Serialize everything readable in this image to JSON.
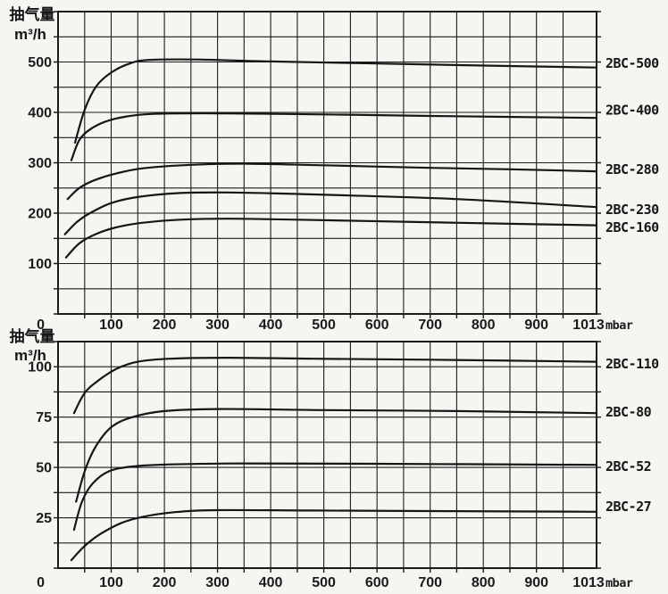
{
  "page": {
    "background": "#f6f5f2",
    "ink": "#1b1b1b"
  },
  "chart_data": [
    {
      "type": "line",
      "position": "top",
      "ylabel_cn": "抽气量",
      "ylabel_unit": "m³/h",
      "x_unit": "mbar",
      "xlim": [
        0,
        1013
      ],
      "ylim": [
        0,
        600
      ],
      "x_grid_step": 50,
      "y_grid_step": 50,
      "x_tick_labels": [
        100,
        200,
        300,
        400,
        500,
        600,
        700,
        800,
        900
      ],
      "x_end_tick_label": "1013",
      "y_tick_labels": [
        100,
        200,
        300,
        400,
        500
      ],
      "origin_label": "0",
      "grid": true,
      "legend_position": "right-outside",
      "series": [
        {
          "name": "2BC-500",
          "label_y": 497,
          "points": [
            [
              32,
              340
            ],
            [
              50,
              405
            ],
            [
              72,
              452
            ],
            [
              100,
              479
            ],
            [
              135,
              497
            ],
            [
              170,
              504
            ],
            [
              260,
              505
            ],
            [
              400,
              501
            ],
            [
              600,
              497
            ],
            [
              800,
              493
            ],
            [
              1013,
              489
            ]
          ]
        },
        {
          "name": "2BC-400",
          "label_y": 404,
          "points": [
            [
              25,
              305
            ],
            [
              40,
              345
            ],
            [
              60,
              366
            ],
            [
              90,
              382
            ],
            [
              130,
              392
            ],
            [
              180,
              397
            ],
            [
              300,
              398
            ],
            [
              500,
              396
            ],
            [
              700,
              393
            ],
            [
              1013,
              389
            ]
          ]
        },
        {
          "name": "2BC-280",
          "label_y": 287,
          "points": [
            [
              18,
              228
            ],
            [
              40,
              250
            ],
            [
              70,
              266
            ],
            [
              110,
              279
            ],
            [
              160,
              289
            ],
            [
              250,
              296
            ],
            [
              360,
              298
            ],
            [
              500,
              295
            ],
            [
              700,
              290
            ],
            [
              850,
              287
            ],
            [
              1013,
              283
            ]
          ]
        },
        {
          "name": "2BC-230",
          "label_y": 207,
          "points": [
            [
              13,
              158
            ],
            [
              35,
              182
            ],
            [
              60,
              200
            ],
            [
              100,
              220
            ],
            [
              150,
              232
            ],
            [
              230,
              240
            ],
            [
              320,
              241
            ],
            [
              420,
              239
            ],
            [
              550,
              235
            ],
            [
              750,
              228
            ],
            [
              1013,
              212
            ]
          ]
        },
        {
          "name": "2BC-160",
          "label_y": 172,
          "points": [
            [
              15,
              112
            ],
            [
              40,
              140
            ],
            [
              70,
              158
            ],
            [
              110,
              172
            ],
            [
              160,
              181
            ],
            [
              230,
              187
            ],
            [
              320,
              189
            ],
            [
              450,
              187
            ],
            [
              650,
              183
            ],
            [
              850,
              179
            ],
            [
              1013,
              176
            ]
          ]
        }
      ]
    },
    {
      "type": "line",
      "position": "bottom",
      "ylabel_cn": "抽气量",
      "ylabel_unit": "m³/h",
      "x_unit": "mbar",
      "xlim": [
        0,
        1013
      ],
      "ylim": [
        0,
        112.5
      ],
      "x_grid_step": 50,
      "y_grid_step": 12.5,
      "x_tick_labels": [
        100,
        200,
        300,
        400,
        500,
        600,
        700,
        800,
        900
      ],
      "x_end_tick_label": "1013",
      "y_tick_labels": [
        25,
        50,
        75,
        100
      ],
      "origin_label": "0",
      "grid": true,
      "legend_position": "right-outside",
      "series": [
        {
          "name": "2BC-110",
          "label_y": 101.5,
          "points": [
            [
              30,
              77
            ],
            [
              50,
              87
            ],
            [
              75,
              93
            ],
            [
              110,
              99
            ],
            [
              150,
              102.5
            ],
            [
              210,
              104
            ],
            [
              320,
              104.5
            ],
            [
              480,
              104
            ],
            [
              700,
              103.5
            ],
            [
              1013,
              102.5
            ]
          ]
        },
        {
          "name": "2BC-80",
          "label_y": 77.5,
          "points": [
            [
              34,
              33
            ],
            [
              50,
              48
            ],
            [
              70,
              60
            ],
            [
              100,
              70
            ],
            [
              140,
              75
            ],
            [
              200,
              78
            ],
            [
              300,
              79
            ],
            [
              500,
              78.5
            ],
            [
              750,
              78
            ],
            [
              1013,
              77
            ]
          ]
        },
        {
          "name": "2BC-52",
          "label_y": 50.5,
          "points": [
            [
              30,
              19
            ],
            [
              45,
              33
            ],
            [
              65,
              42
            ],
            [
              95,
              48
            ],
            [
              140,
              50.5
            ],
            [
              210,
              51.5
            ],
            [
              350,
              52
            ],
            [
              600,
              51.8
            ],
            [
              1013,
              51.3
            ]
          ]
        },
        {
          "name": "2BC-27",
          "label_y": 30.5,
          "points": [
            [
              25,
              4
            ],
            [
              50,
              11
            ],
            [
              80,
              17
            ],
            [
              120,
              22.5
            ],
            [
              160,
              25.5
            ],
            [
              220,
              27.8
            ],
            [
              300,
              28.8
            ],
            [
              480,
              28.6
            ],
            [
              750,
              28.3
            ],
            [
              1013,
              28
            ]
          ]
        }
      ]
    }
  ]
}
